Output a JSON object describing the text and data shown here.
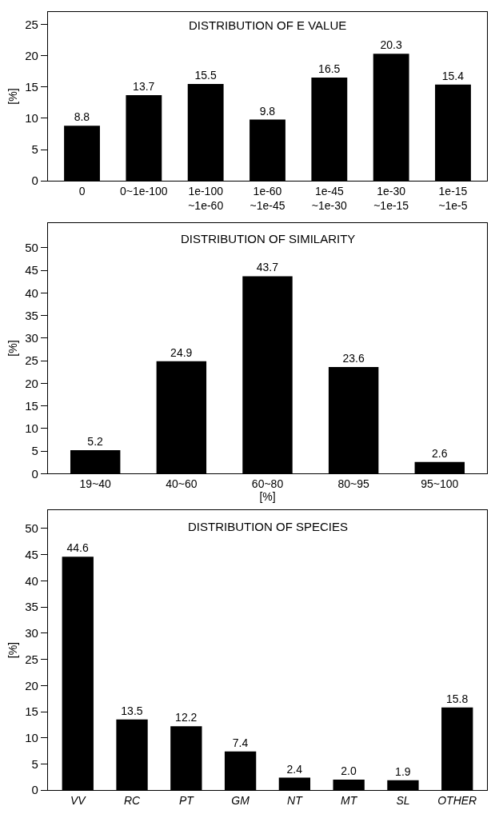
{
  "chart_data": [
    {
      "type": "bar",
      "title": "DISTRIBUTION OF E VALUE",
      "ylabel": "[%]",
      "categories": [
        "0",
        "0~1e-100",
        "1e-100\n~1e-60",
        "1e-60\n~1e-45",
        "1e-45\n~1e-30",
        "1e-30\n~1e-15",
        "1e-15\n~1e-5"
      ],
      "values": [
        8.8,
        13.7,
        15.5,
        9.8,
        16.5,
        20.3,
        15.4
      ],
      "color": "#000000",
      "ylim": [
        0,
        27
      ],
      "yticks": [
        0,
        5,
        10,
        15,
        20,
        25
      ],
      "data_labels": true
    },
    {
      "type": "bar",
      "title": "DISTRIBUTION OF SIMILARITY",
      "ylabel": "[%]",
      "xlabel": "[%]",
      "categories": [
        "19~40",
        "40~60",
        "60~80",
        "80~95",
        "95~100"
      ],
      "values": [
        5.2,
        24.9,
        43.7,
        23.6,
        2.6
      ],
      "color": "#000000",
      "ylim": [
        0,
        55.5
      ],
      "yticks": [
        0,
        5,
        10,
        15,
        20,
        25,
        30,
        35,
        40,
        45,
        50
      ],
      "data_labels": true
    },
    {
      "type": "bar",
      "title": "DISTRIBUTION OF SPECIES",
      "ylabel": "[%]",
      "categories": [
        "VV",
        "RC",
        "PT",
        "GM",
        "NT",
        "MT",
        "SL",
        "OTHER"
      ],
      "values": [
        44.6,
        13.5,
        12.2,
        7.4,
        2.4,
        2.0,
        1.9,
        15.8
      ],
      "value_labels": [
        "44.6",
        "13.5",
        "12.2",
        "7.4",
        "2.4",
        "2.0",
        "1.9",
        "15.8"
      ],
      "color": "#000000",
      "ylim": [
        0,
        53.5
      ],
      "yticks": [
        0,
        5,
        10,
        15,
        20,
        25,
        30,
        35,
        40,
        45,
        50
      ]
    }
  ]
}
